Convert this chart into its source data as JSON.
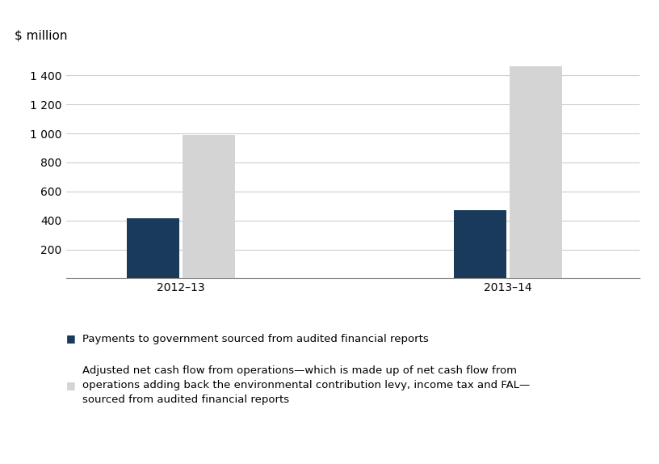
{
  "years": [
    "2012–13",
    "2013–14"
  ],
  "payments_to_govt": [
    415,
    470
  ],
  "adjusted_net_cash": [
    990,
    1465
  ],
  "bar_color_payments": "#1a3a5c",
  "bar_color_adjusted": "#d4d4d4",
  "ylabel_top": "$ million",
  "ylim": [
    0,
    1600
  ],
  "yticks": [
    0,
    200,
    400,
    600,
    800,
    1000,
    1200,
    1400
  ],
  "ytick_labels": [
    "",
    "200",
    "400",
    "600",
    "800",
    "1 000",
    "1 200",
    "1 400"
  ],
  "legend1_label": "Payments to government sourced from audited financial reports",
  "legend2_label": "Adjusted net cash flow from operations—which is made up of net cash flow from\noperations adding back the environmental contribution levy, income tax and FAL—\nsourced from audited financial reports",
  "bar_width": 0.32,
  "background_color": "#ffffff",
  "grid_color": "#cccccc",
  "font_size_ylabel": 11,
  "font_size_ticks": 10,
  "font_size_legend": 9.5
}
